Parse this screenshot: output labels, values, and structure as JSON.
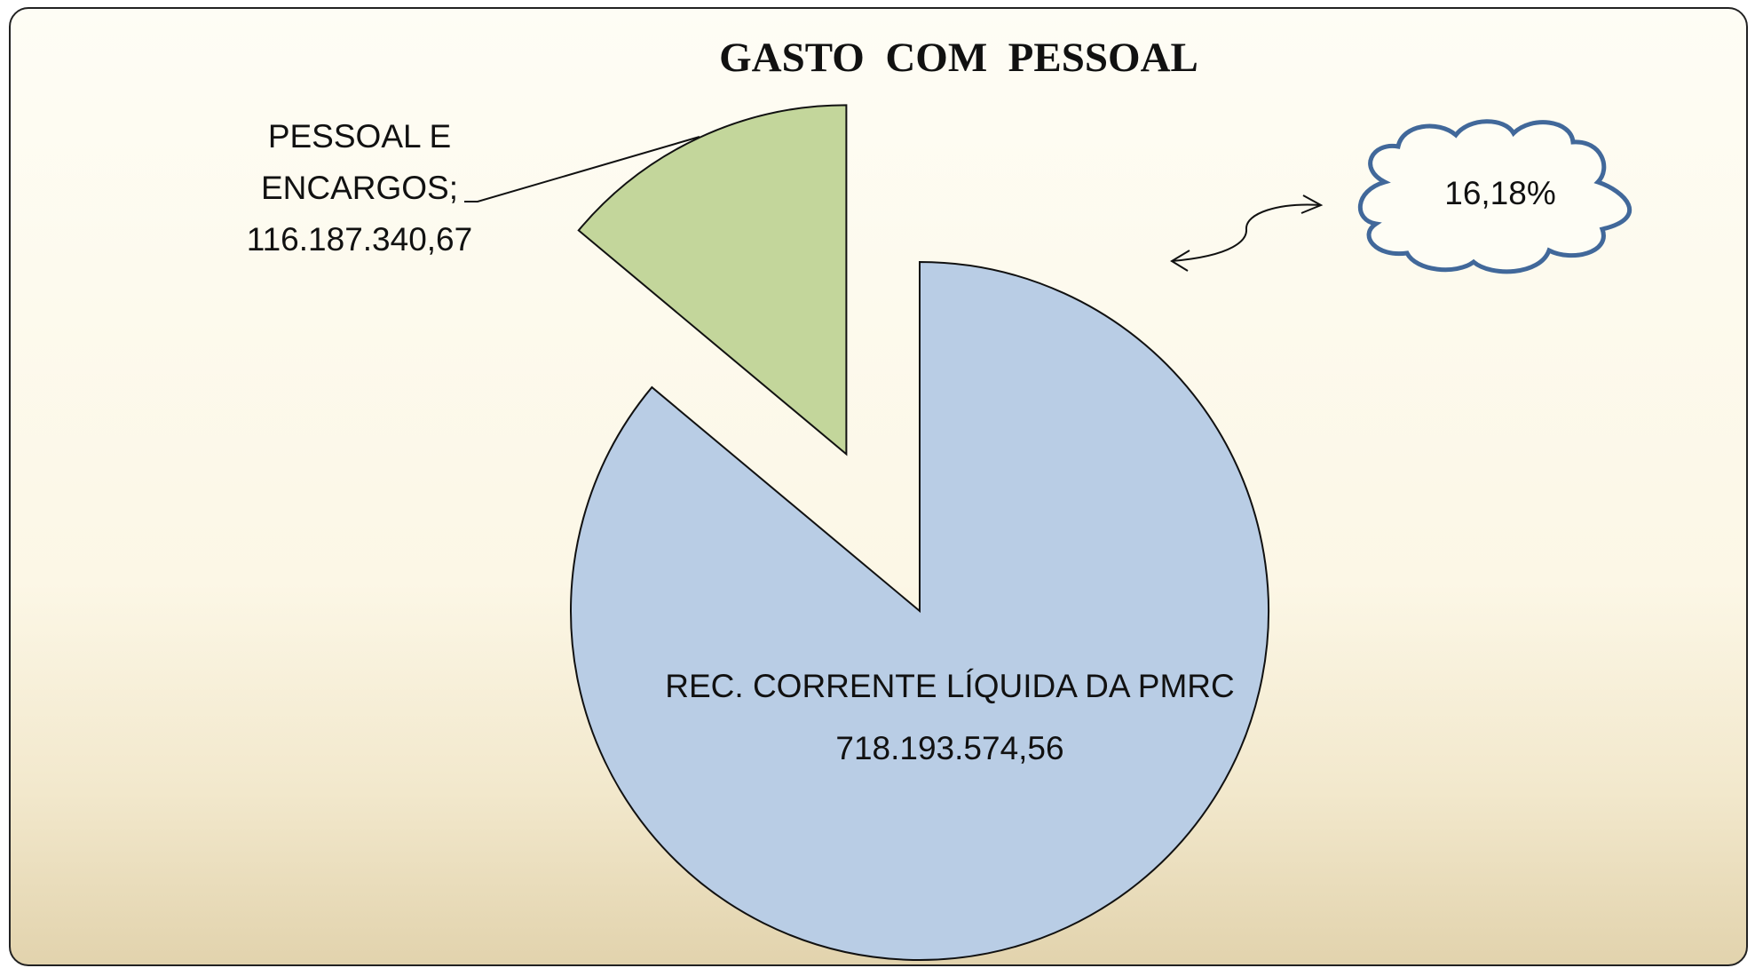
{
  "chart_data": {
    "type": "pie",
    "title": "GASTO  COM  PESSOAL",
    "categories": [
      "PESSOAL E ENCARGOS;",
      "REC. CORRENTE LÍQUIDA DA PMRC"
    ],
    "values": [
      116187340.67,
      718193574.56
    ],
    "value_labels": [
      "116.187.340,67",
      "718.193.574,56"
    ],
    "colors": [
      "#c3d69b",
      "#b9cde5"
    ],
    "annotation": "16,18%"
  }
}
